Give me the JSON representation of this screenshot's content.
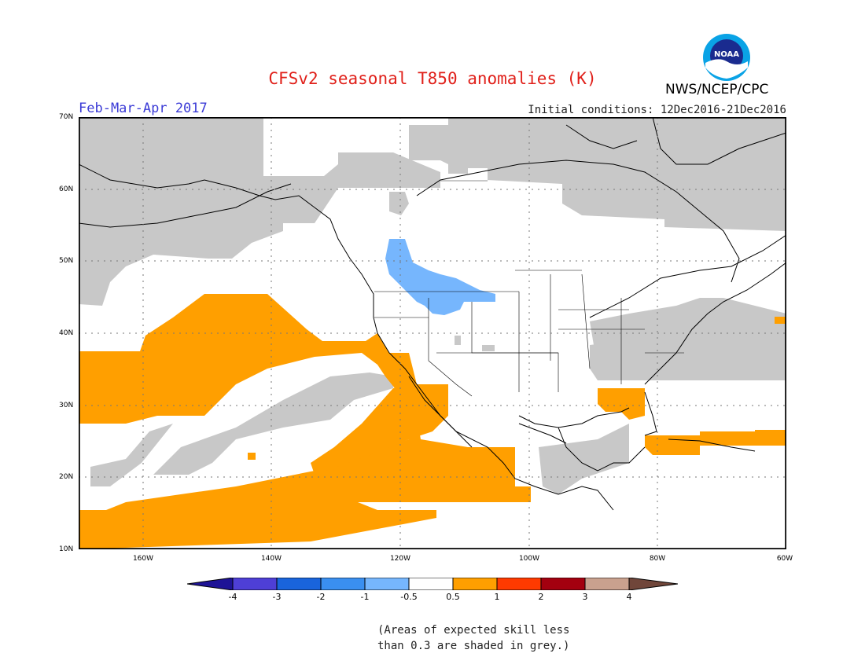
{
  "header": {
    "title": "CFSv2 seasonal T850 anomalies (K)",
    "period": "Feb-Mar-Apr 2017",
    "initial_conditions": "Initial conditions: 12Dec2016-21Dec2016",
    "agency": "NWS/NCEP/CPC",
    "logo_text": "NOAA"
  },
  "map": {
    "lat_labels": [
      "70N",
      "60N",
      "50N",
      "40N",
      "30N",
      "20N",
      "10N"
    ],
    "lon_labels": [
      "160W",
      "140W",
      "120W",
      "100W",
      "80W",
      "60W"
    ],
    "lon_range": [
      -170,
      -60
    ],
    "lat_range": [
      10,
      70
    ],
    "legend_colors": {
      "positive_anomaly": "#ff9f00",
      "negative_anomaly": "#76b6fd",
      "low_skill": "#c8c8c8"
    }
  },
  "colorbar": {
    "labels": [
      "-4",
      "-3",
      "-2",
      "-1",
      "-0.5",
      "0.5",
      "1",
      "2",
      "3",
      "4"
    ],
    "colors": [
      "#1e1396",
      "#4e3fd6",
      "#1964dc",
      "#3a8ff0",
      "#76b6fd",
      "#ffffff",
      "#ff9f00",
      "#ff3a00",
      "#a3000f",
      "#c9a18e",
      "#70463a"
    ]
  },
  "note": {
    "line1": "(Areas of expected skill less",
    "line2": "than 0.3 are shaded in grey.)"
  }
}
